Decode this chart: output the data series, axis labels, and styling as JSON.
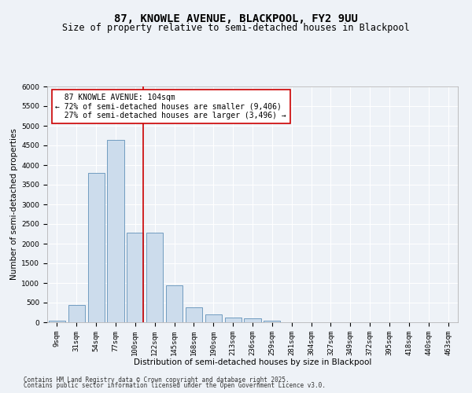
{
  "title1": "87, KNOWLE AVENUE, BLACKPOOL, FY2 9UU",
  "title2": "Size of property relative to semi-detached houses in Blackpool",
  "xlabel": "Distribution of semi-detached houses by size in Blackpool",
  "ylabel": "Number of semi-detached properties",
  "categories": [
    "9sqm",
    "31sqm",
    "54sqm",
    "77sqm",
    "100sqm",
    "122sqm",
    "145sqm",
    "168sqm",
    "190sqm",
    "213sqm",
    "236sqm",
    "259sqm",
    "281sqm",
    "304sqm",
    "327sqm",
    "349sqm",
    "372sqm",
    "395sqm",
    "418sqm",
    "440sqm",
    "463sqm"
  ],
  "values": [
    50,
    450,
    3800,
    4650,
    2275,
    2275,
    950,
    375,
    200,
    130,
    110,
    50,
    10,
    5,
    3,
    2,
    1,
    1,
    1,
    0,
    0
  ],
  "bar_color": "#ccdcec",
  "bar_edge_color": "#6090b8",
  "vline_x_index": 4,
  "vline_color": "#cc0000",
  "pct_smaller": "72%",
  "n_smaller": "9,406",
  "pct_larger": "27%",
  "n_larger": "3,496",
  "annotation_label": "87 KNOWLE AVENUE: 104sqm",
  "ylim": [
    0,
    6000
  ],
  "yticks": [
    0,
    500,
    1000,
    1500,
    2000,
    2500,
    3000,
    3500,
    4000,
    4500,
    5000,
    5500,
    6000
  ],
  "bg_color": "#eef2f7",
  "grid_color": "#ffffff",
  "footer1": "Contains HM Land Registry data © Crown copyright and database right 2025.",
  "footer2": "Contains public sector information licensed under the Open Government Licence v3.0.",
  "title1_fontsize": 10,
  "title2_fontsize": 8.5,
  "axis_fontsize": 7.5,
  "tick_fontsize": 6.5,
  "annotation_fontsize": 7,
  "footer_fontsize": 5.5
}
